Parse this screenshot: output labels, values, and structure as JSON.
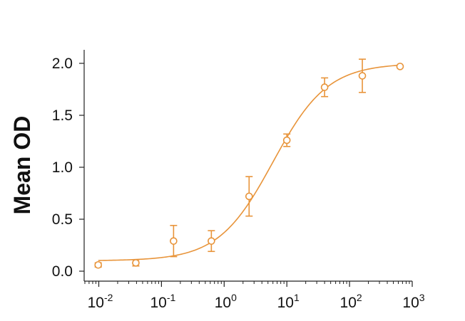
{
  "chart_data": {
    "type": "scatter",
    "title": "",
    "xlabel": "",
    "ylabel": "Mean OD",
    "x_scale": "log",
    "xlim": [
      0.006,
      1000
    ],
    "ylim": [
      0,
      2.0
    ],
    "x_ticks": [
      {
        "base": "10",
        "exp": "-2",
        "value": 0.01
      },
      {
        "base": "10",
        "exp": "-1",
        "value": 0.1
      },
      {
        "base": "10",
        "exp": "0",
        "value": 1
      },
      {
        "base": "10",
        "exp": "1",
        "value": 10
      },
      {
        "base": "10",
        "exp": "2",
        "value": 100
      },
      {
        "base": "10",
        "exp": "3",
        "value": 1000
      }
    ],
    "y_ticks": [
      "0.0",
      "0.5",
      "1.0",
      "1.5",
      "2.0"
    ],
    "grid": false,
    "legend": "none",
    "color": "#E8943A",
    "points": [
      {
        "x": 0.0098,
        "y": 0.06,
        "err": 0.02
      },
      {
        "x": 0.039,
        "y": 0.08,
        "err": 0.03
      },
      {
        "x": 0.156,
        "y": 0.29,
        "err": 0.15
      },
      {
        "x": 0.625,
        "y": 0.29,
        "err": 0.1
      },
      {
        "x": 2.5,
        "y": 0.72,
        "err": 0.19
      },
      {
        "x": 10,
        "y": 1.26,
        "err": 0.06
      },
      {
        "x": 40,
        "y": 1.77,
        "err": 0.09
      },
      {
        "x": 160,
        "y": 1.88,
        "err": 0.16
      },
      {
        "x": 640,
        "y": 1.97,
        "err": 0
      }
    ],
    "fit": {
      "model": "4PL",
      "bottom": 0.1,
      "top": 2.0,
      "ec50": 6,
      "hill": 1
    }
  }
}
